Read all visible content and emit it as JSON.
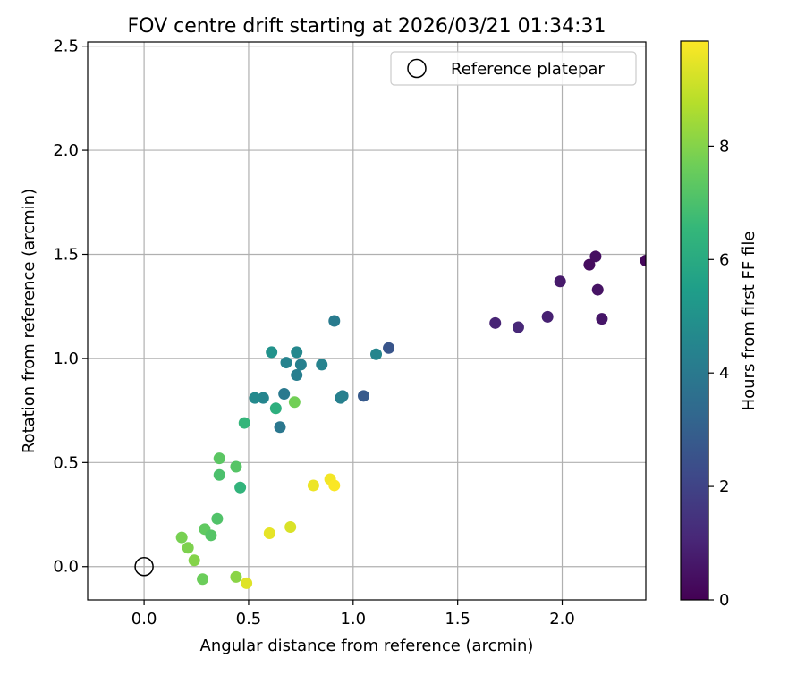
{
  "chart_data": {
    "type": "scatter",
    "title": "FOV centre drift starting at 2026/03/21 01:34:31",
    "xlabel": "Angular distance from reference (arcmin)",
    "ylabel": "Rotation from reference (arcmin)",
    "xlim": [
      -0.27,
      2.4
    ],
    "ylim": [
      -0.16,
      2.52
    ],
    "xticks": [
      0.0,
      0.5,
      1.0,
      1.5,
      2.0
    ],
    "xtick_labels": [
      "0.0",
      "0.5",
      "1.0",
      "1.5",
      "2.0"
    ],
    "yticks": [
      0.0,
      0.5,
      1.0,
      1.5,
      2.0,
      2.5
    ],
    "ytick_labels": [
      "0.0",
      "0.5",
      "1.0",
      "1.5",
      "2.0",
      "2.5"
    ],
    "grid": true,
    "legend": {
      "position": "top-right",
      "entries": [
        {
          "label": "Reference platepar",
          "marker": "open-circle"
        }
      ]
    },
    "reference_point": {
      "x": 0.0,
      "y": 0.0
    },
    "colorbar": {
      "label": "Hours from first FF file",
      "colormap": "viridis",
      "min": 0,
      "max": 9.85,
      "ticks": [
        0,
        2,
        4,
        6,
        8
      ],
      "tick_labels": [
        "0",
        "2",
        "4",
        "6",
        "8"
      ]
    },
    "colormap_stops": [
      "#440154",
      "#482878",
      "#3e4989",
      "#31688e",
      "#26828e",
      "#1f9e89",
      "#35b779",
      "#6ece58",
      "#b5de2b",
      "#fde725"
    ],
    "points": [
      {
        "x": 2.4,
        "y": 1.47,
        "hours": 0.2
      },
      {
        "x": 2.16,
        "y": 1.49,
        "hours": 0.4
      },
      {
        "x": 2.13,
        "y": 1.45,
        "hours": 0.3
      },
      {
        "x": 2.17,
        "y": 1.33,
        "hours": 0.5
      },
      {
        "x": 1.99,
        "y": 1.37,
        "hours": 0.7
      },
      {
        "x": 2.19,
        "y": 1.19,
        "hours": 0.6
      },
      {
        "x": 1.93,
        "y": 1.2,
        "hours": 0.9
      },
      {
        "x": 1.68,
        "y": 1.17,
        "hours": 1.0
      },
      {
        "x": 1.79,
        "y": 1.15,
        "hours": 1.1
      },
      {
        "x": 1.17,
        "y": 1.05,
        "hours": 2.6
      },
      {
        "x": 1.05,
        "y": 0.82,
        "hours": 2.8
      },
      {
        "x": 1.11,
        "y": 1.02,
        "hours": 4.5
      },
      {
        "x": 0.91,
        "y": 1.18,
        "hours": 4.1
      },
      {
        "x": 0.95,
        "y": 0.82,
        "hours": 4.2
      },
      {
        "x": 0.94,
        "y": 0.81,
        "hours": 4.3
      },
      {
        "x": 0.85,
        "y": 0.97,
        "hours": 4.4
      },
      {
        "x": 0.75,
        "y": 0.97,
        "hours": 4.3
      },
      {
        "x": 0.73,
        "y": 1.03,
        "hours": 4.6
      },
      {
        "x": 0.73,
        "y": 0.92,
        "hours": 4.2
      },
      {
        "x": 0.68,
        "y": 0.98,
        "hours": 4.4
      },
      {
        "x": 0.67,
        "y": 0.83,
        "hours": 4.0
      },
      {
        "x": 0.65,
        "y": 0.67,
        "hours": 3.9
      },
      {
        "x": 0.61,
        "y": 1.03,
        "hours": 5.0
      },
      {
        "x": 0.57,
        "y": 0.81,
        "hours": 4.5
      },
      {
        "x": 0.53,
        "y": 0.81,
        "hours": 4.7
      },
      {
        "x": 0.63,
        "y": 0.76,
        "hours": 6.2
      },
      {
        "x": 0.72,
        "y": 0.79,
        "hours": 7.7
      },
      {
        "x": 0.48,
        "y": 0.69,
        "hours": 6.5
      },
      {
        "x": 0.36,
        "y": 0.52,
        "hours": 7.3
      },
      {
        "x": 0.44,
        "y": 0.48,
        "hours": 7.2
      },
      {
        "x": 0.36,
        "y": 0.44,
        "hours": 7.0
      },
      {
        "x": 0.46,
        "y": 0.38,
        "hours": 6.4
      },
      {
        "x": 0.35,
        "y": 0.23,
        "hours": 7.1
      },
      {
        "x": 0.29,
        "y": 0.18,
        "hours": 7.4
      },
      {
        "x": 0.32,
        "y": 0.15,
        "hours": 7.2
      },
      {
        "x": 0.18,
        "y": 0.14,
        "hours": 7.8
      },
      {
        "x": 0.21,
        "y": 0.09,
        "hours": 7.9
      },
      {
        "x": 0.24,
        "y": 0.03,
        "hours": 8.0
      },
      {
        "x": 0.28,
        "y": -0.06,
        "hours": 7.6
      },
      {
        "x": 0.44,
        "y": -0.05,
        "hours": 8.1
      },
      {
        "x": 0.49,
        "y": -0.08,
        "hours": 9.4
      },
      {
        "x": 0.6,
        "y": 0.16,
        "hours": 9.5
      },
      {
        "x": 0.7,
        "y": 0.19,
        "hours": 9.3
      },
      {
        "x": 0.81,
        "y": 0.39,
        "hours": 9.6
      },
      {
        "x": 0.89,
        "y": 0.42,
        "hours": 9.7
      },
      {
        "x": 0.91,
        "y": 0.39,
        "hours": 9.8
      }
    ]
  }
}
